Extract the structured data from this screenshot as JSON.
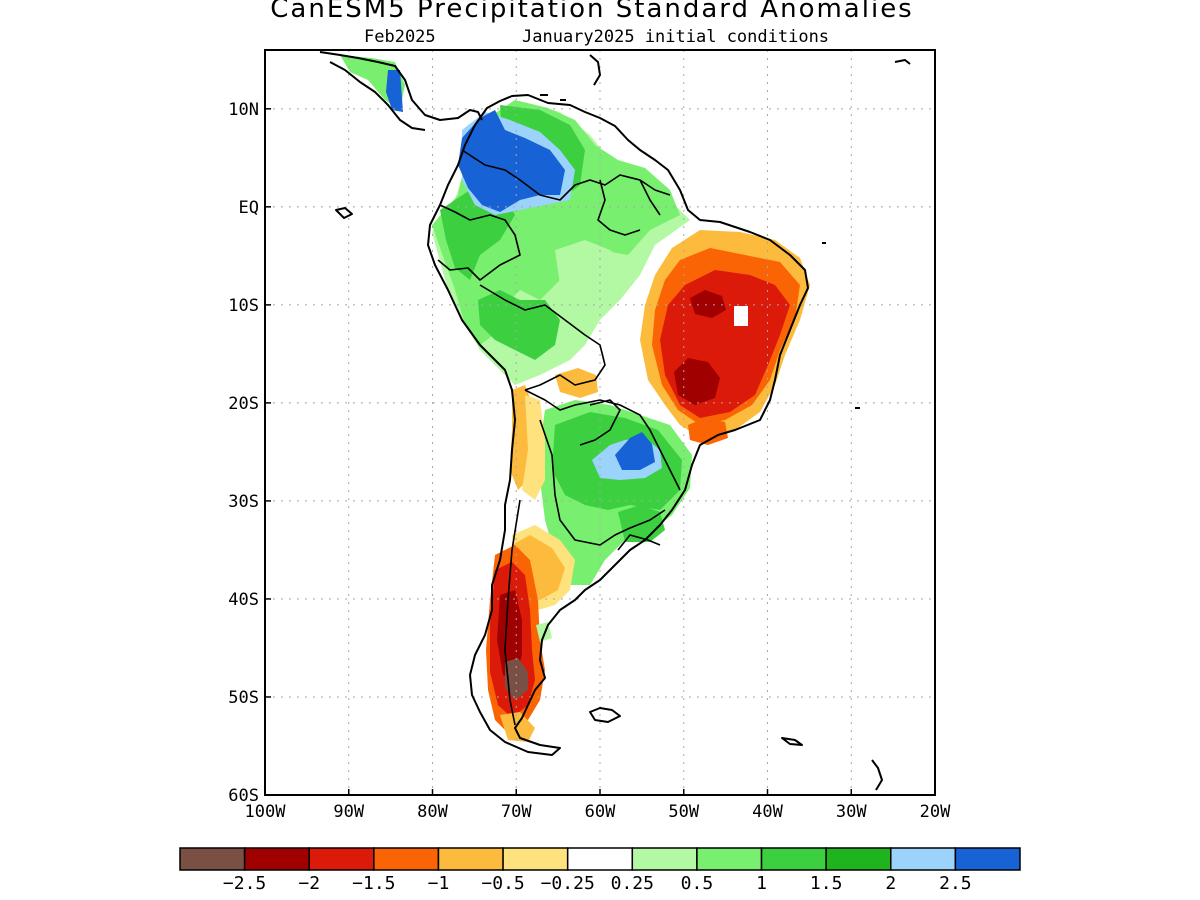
{
  "title": "CanESM5 Precipitation Standard Anomalies",
  "subtitle_month": "Feb2025",
  "subtitle_init": "January2025 initial conditions",
  "axes": {
    "x_ticks": [
      {
        "value": -100,
        "label": "100W"
      },
      {
        "value": -90,
        "label": "90W"
      },
      {
        "value": -80,
        "label": "80W"
      },
      {
        "value": -70,
        "label": "70W"
      },
      {
        "value": -60,
        "label": "60W"
      },
      {
        "value": -50,
        "label": "50W"
      },
      {
        "value": -40,
        "label": "40W"
      },
      {
        "value": -30,
        "label": "30W"
      },
      {
        "value": -20,
        "label": "20W"
      }
    ],
    "y_ticks": [
      {
        "value": 10,
        "label": "10N"
      },
      {
        "value": 0,
        "label": "EQ"
      },
      {
        "value": -10,
        "label": "10S"
      },
      {
        "value": -20,
        "label": "20S"
      },
      {
        "value": -30,
        "label": "30S"
      },
      {
        "value": -40,
        "label": "40S"
      },
      {
        "value": -50,
        "label": "50S"
      },
      {
        "value": -60,
        "label": "60S"
      }
    ],
    "lon_range": [
      -100,
      -20
    ],
    "lat_range": [
      -60,
      16
    ],
    "grid": "dotted"
  },
  "colorbar": {
    "colors": [
      "#7a5044",
      "#a00000",
      "#dc1a0a",
      "#fa6405",
      "#fcbb3c",
      "#fee27d",
      "#ffffff",
      "#b3f9a4",
      "#78ef6e",
      "#3cd041",
      "#1fb41e",
      "#9bd3fb",
      "#1762d4"
    ],
    "labels": [
      "−2.5",
      "−2",
      "−1.5",
      "−1",
      "−0.5",
      "−0.25",
      "0.25",
      "0.5",
      "1",
      "1.5",
      "2",
      "2.5"
    ]
  },
  "anomaly_regions": [
    {
      "level": "2.5",
      "color": "#1762d4",
      "area": "northern Colombia / western Venezuela"
    },
    {
      "level": "1.5",
      "color": "#3cd041",
      "area": "northern Amazon / Venezuela"
    },
    {
      "level": "1",
      "color": "#78ef6e",
      "area": "western Amazon, Peru, Ecuador"
    },
    {
      "level": "0.5",
      "color": "#b3f9a4",
      "area": "central Amazon"
    },
    {
      "level": "-1.5",
      "color": "#dc1a0a",
      "area": "eastern Brazil"
    },
    {
      "level": "-2",
      "color": "#a00000",
      "area": "central-eastern Brazil core"
    },
    {
      "level": "1.5",
      "color": "#3cd041",
      "area": "Paraguay / southern Brazil / NE Argentina"
    },
    {
      "level": "2.5",
      "color": "#1762d4",
      "area": "Paraguay core"
    },
    {
      "level": "-1.5",
      "color": "#dc1a0a",
      "area": "southern Chile"
    },
    {
      "level": "-2.5",
      "color": "#7a5044",
      "area": "southern Patagonia"
    },
    {
      "level": "-0.5",
      "color": "#fcbb3c",
      "area": "northern Chile / central Argentina"
    }
  ]
}
